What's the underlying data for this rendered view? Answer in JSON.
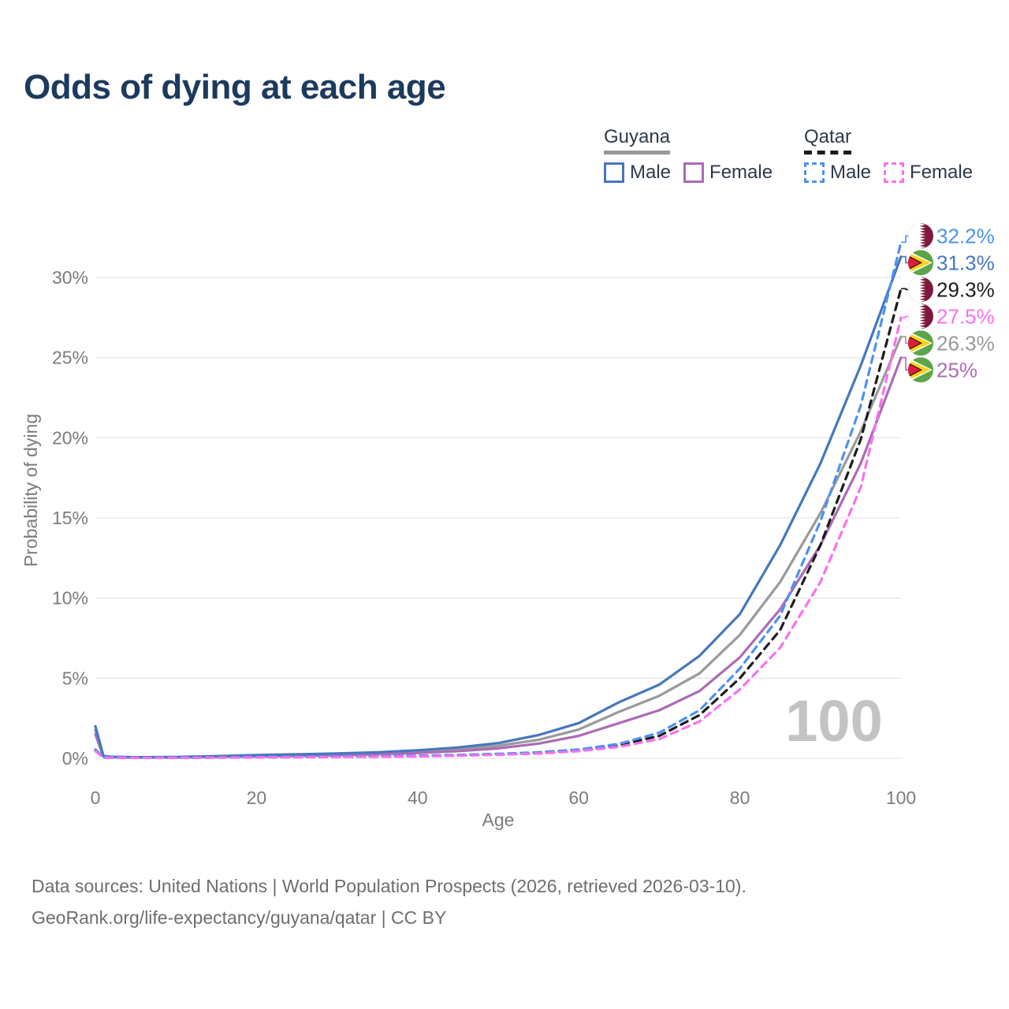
{
  "title": "Odds of dying at each age",
  "legend": {
    "groups": [
      {
        "name": "Guyana",
        "line_style": "solid",
        "underline_color": "#999999",
        "items": [
          {
            "label": "Male",
            "color": "#4677bd",
            "dash": false
          },
          {
            "label": "Female",
            "color": "#ac6bb5",
            "dash": false
          }
        ]
      },
      {
        "name": "Qatar",
        "line_style": "dashed",
        "underline_color": "#1c1c1c",
        "items": [
          {
            "label": "Male",
            "color": "#4c92f0",
            "dash": true
          },
          {
            "label": "Female",
            "color": "#fa70ee",
            "dash": true
          }
        ]
      }
    ]
  },
  "watermark": "100",
  "footer": {
    "line1": "Data sources: United Nations | World Population Prospects (2026, retrieved 2026-03-10).",
    "line2": "GeoRank.org/life-expectancy/guyana/qatar | CC BY"
  },
  "chart_data": {
    "type": "line",
    "title": "Odds of dying at each age",
    "xlabel": "Age",
    "ylabel": "Probability of dying",
    "xlim": [
      0,
      100
    ],
    "ylim_percent": [
      0,
      33
    ],
    "x_ticks": [
      0,
      20,
      40,
      60,
      80,
      100
    ],
    "y_ticks": [
      {
        "value": 0,
        "label": "0%"
      },
      {
        "value": 5,
        "label": "5%"
      },
      {
        "value": 10,
        "label": "10%"
      },
      {
        "value": 15,
        "label": "15%"
      },
      {
        "value": 20,
        "label": "20%"
      },
      {
        "value": 25,
        "label": "25%"
      },
      {
        "value": 30,
        "label": "30%"
      }
    ],
    "grid": true,
    "legend_position": "top-right",
    "x": [
      0,
      1,
      2,
      5,
      10,
      15,
      20,
      25,
      30,
      35,
      40,
      45,
      50,
      55,
      60,
      65,
      70,
      75,
      80,
      85,
      90,
      95,
      100
    ],
    "series": [
      {
        "key": "guyana-both",
        "name": "Guyana Both sexes",
        "country": "Guyana",
        "sex": "Both",
        "color": "#9a9a9a",
        "dash": false,
        "flag": "guyana",
        "end_label": "26.3%",
        "values": [
          1.75,
          0.13,
          0.09,
          0.06,
          0.07,
          0.12,
          0.16,
          0.2,
          0.25,
          0.31,
          0.41,
          0.56,
          0.78,
          1.15,
          1.8,
          2.9,
          3.9,
          5.3,
          7.7,
          11.0,
          15.3,
          20.4,
          26.3
        ]
      },
      {
        "key": "guyana-female",
        "name": "Guyana Female",
        "country": "Guyana",
        "sex": "Female",
        "color": "#ac6bb5",
        "dash": false,
        "flag": "guyana",
        "end_label": "25%",
        "values": [
          1.5,
          0.12,
          0.08,
          0.05,
          0.06,
          0.09,
          0.12,
          0.15,
          0.19,
          0.25,
          0.33,
          0.45,
          0.62,
          0.92,
          1.4,
          2.2,
          3.0,
          4.2,
          6.3,
          9.3,
          13.3,
          18.4,
          25.0
        ]
      },
      {
        "key": "guyana-male",
        "name": "Guyana Male",
        "country": "Guyana",
        "sex": "Male",
        "color": "#4677bd",
        "dash": false,
        "flag": "guyana",
        "end_label": "31.3%",
        "values": [
          2.0,
          0.15,
          0.1,
          0.07,
          0.08,
          0.14,
          0.2,
          0.25,
          0.3,
          0.38,
          0.5,
          0.68,
          0.95,
          1.45,
          2.2,
          3.5,
          4.6,
          6.4,
          9.0,
          13.3,
          18.4,
          24.5,
          31.3
        ]
      },
      {
        "key": "qatar-both",
        "name": "Qatar Both sexes",
        "country": "Qatar",
        "sex": "Both",
        "color": "#1c1c1c",
        "dash": true,
        "flag": "qatar",
        "end_label": "29.3%",
        "values": [
          0.5,
          0.05,
          0.04,
          0.03,
          0.03,
          0.05,
          0.07,
          0.08,
          0.1,
          0.12,
          0.14,
          0.18,
          0.25,
          0.34,
          0.5,
          0.82,
          1.4,
          2.7,
          5.0,
          8.0,
          13.3,
          19.9,
          29.3
        ]
      },
      {
        "key": "qatar-male",
        "name": "Qatar Male",
        "country": "Qatar",
        "sex": "Male",
        "color": "#4c92f0",
        "dash": true,
        "flag": "qatar",
        "end_label": "32.2%",
        "values": [
          0.55,
          0.06,
          0.05,
          0.03,
          0.03,
          0.06,
          0.09,
          0.1,
          0.11,
          0.13,
          0.16,
          0.21,
          0.28,
          0.38,
          0.55,
          0.9,
          1.6,
          3.0,
          5.6,
          8.9,
          14.8,
          22.0,
          32.2
        ]
      },
      {
        "key": "qatar-female",
        "name": "Qatar Female",
        "country": "Qatar",
        "sex": "Female",
        "color": "#fa70ee",
        "dash": true,
        "flag": "qatar",
        "end_label": "27.5%",
        "values": [
          0.45,
          0.05,
          0.04,
          0.03,
          0.03,
          0.04,
          0.06,
          0.07,
          0.08,
          0.1,
          0.12,
          0.16,
          0.22,
          0.3,
          0.45,
          0.72,
          1.2,
          2.3,
          4.3,
          6.9,
          11.0,
          16.9,
          27.5
        ]
      }
    ],
    "colors": {
      "title": "#1c3a5e",
      "axis_text": "#7c7c7c",
      "gridline": "#e7e7e7",
      "watermark": "#c3c3c3",
      "qatar_flag_maroon": "#7f1740",
      "guyana_flag_green": "#5aa648",
      "guyana_flag_yellow": "#fcd116",
      "guyana_flag_red": "#e01a3c"
    }
  }
}
